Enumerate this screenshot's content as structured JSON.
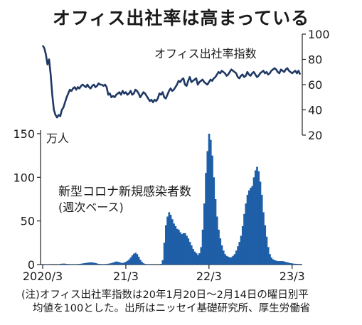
{
  "title": "オフィス出社率は高まっている",
  "note": {
    "line1": "(注)オフィス出社率指数は20年1月20日〜2月14日の曜日別平",
    "line2": "均値を100とした。出所はニッセイ基礎研究所、厚生労働省"
  },
  "colors": {
    "line": "#1f3864",
    "bars": "#1f5fa8",
    "axis": "#222222"
  },
  "chart_data": [
    {
      "type": "line",
      "series_label": "オフィス出社率指数",
      "y_axis_side": "right",
      "ylim": [
        20,
        100
      ],
      "yticks": [
        20,
        40,
        60,
        80,
        100
      ],
      "x_unit": "weeks since 2020/3",
      "x": [
        0,
        1,
        2,
        3,
        4,
        5,
        6,
        7,
        8,
        9,
        10,
        11,
        12,
        13,
        14,
        15,
        16,
        17,
        18,
        19,
        20,
        21,
        22,
        23,
        24,
        25,
        26,
        27,
        28,
        29,
        30,
        31,
        32,
        33,
        34,
        35,
        36,
        37,
        38,
        39,
        40,
        41,
        42,
        43,
        44,
        45,
        46,
        47,
        48,
        49,
        50,
        51,
        52,
        53,
        54,
        55,
        56,
        57,
        58,
        59,
        60,
        61,
        62,
        63,
        64,
        65,
        66,
        67,
        68,
        69,
        70,
        71,
        72,
        73,
        74,
        75,
        76,
        77,
        78,
        79,
        80,
        81,
        82,
        83,
        84,
        85,
        86,
        87,
        88,
        89,
        90,
        91,
        92,
        93,
        94,
        95,
        96,
        97,
        98,
        99,
        100,
        101,
        102,
        103,
        104,
        105,
        106,
        107,
        108,
        109,
        110,
        111,
        112,
        113,
        114,
        115,
        116,
        117,
        118,
        119,
        120,
        121,
        122,
        123,
        124,
        125,
        126,
        127,
        128,
        129,
        130,
        131,
        132,
        133,
        134,
        135,
        136,
        137,
        138,
        139,
        140,
        141,
        142,
        143,
        144,
        145,
        146,
        147,
        148,
        149,
        150,
        151,
        152,
        153,
        154,
        155,
        156,
        157,
        158,
        159,
        160,
        161
      ],
      "values": [
        91,
        89,
        84,
        76,
        80,
        68,
        52,
        40,
        36,
        34,
        36,
        35,
        40,
        42,
        46,
        50,
        53,
        56,
        55,
        57,
        58,
        56,
        58,
        57,
        59,
        60,
        59,
        58,
        60,
        58,
        57,
        59,
        60,
        58,
        59,
        61,
        60,
        60,
        59,
        60,
        58,
        52,
        53,
        50,
        51,
        50,
        52,
        53,
        54,
        52,
        55,
        53,
        54,
        52,
        53,
        55,
        52,
        53,
        56,
        55,
        53,
        50,
        52,
        54,
        53,
        51,
        49,
        47,
        48,
        46,
        48,
        47,
        49,
        53,
        52,
        54,
        50,
        49,
        52,
        55,
        57,
        55,
        56,
        58,
        60,
        63,
        62,
        64,
        65,
        60,
        59,
        63,
        66,
        62,
        63,
        64,
        65,
        60,
        62,
        63,
        64,
        62,
        61,
        60,
        62,
        64,
        63,
        65,
        66,
        68,
        70,
        69,
        71,
        70,
        69,
        67,
        68,
        70,
        72,
        71,
        70,
        69,
        66,
        65,
        67,
        68,
        66,
        67,
        70,
        68,
        67,
        69,
        70,
        68,
        66,
        67,
        69,
        70,
        71,
        69,
        70,
        68,
        69,
        71,
        72,
        73,
        72,
        70,
        69,
        72,
        71,
        70,
        72,
        73,
        71,
        70,
        69,
        70,
        71,
        69,
        71,
        68
      ]
    },
    {
      "type": "bar",
      "series_label": "新型コロナ新規感染者数",
      "series_sublabel": "(週次ベース)",
      "unit": "万人",
      "y_axis_side": "left",
      "ylim": [
        0,
        150
      ],
      "yticks": [
        0,
        50,
        100,
        150
      ],
      "x_ticks": [
        "2020/3",
        "21/3",
        "22/3",
        "23/3"
      ],
      "x_unit": "weeks since 2020/3",
      "x": [
        0,
        1,
        2,
        3,
        4,
        5,
        6,
        7,
        8,
        9,
        10,
        11,
        12,
        13,
        14,
        15,
        16,
        17,
        18,
        19,
        20,
        21,
        22,
        23,
        24,
        25,
        26,
        27,
        28,
        29,
        30,
        31,
        32,
        33,
        34,
        35,
        36,
        37,
        38,
        39,
        40,
        41,
        42,
        43,
        44,
        45,
        46,
        47,
        48,
        49,
        50,
        51,
        52,
        53,
        54,
        55,
        56,
        57,
        58,
        59,
        60,
        61,
        62,
        63,
        64,
        65,
        66,
        67,
        68,
        69,
        70,
        71,
        72,
        73,
        74,
        75,
        76,
        77,
        78,
        79,
        80,
        81,
        82,
        83,
        84,
        85,
        86,
        87,
        88,
        89,
        90,
        91,
        92,
        93,
        94,
        95,
        96,
        97,
        98,
        99,
        100,
        101,
        102,
        103,
        104,
        105,
        106,
        107,
        108,
        109,
        110,
        111,
        112,
        113,
        114,
        115,
        116,
        117,
        118,
        119,
        120,
        121,
        122,
        123,
        124,
        125,
        126,
        127,
        128,
        129,
        130,
        131,
        132,
        133,
        134,
        135,
        136,
        137,
        138,
        139,
        140,
        141,
        142,
        143,
        144,
        145,
        146,
        147,
        148,
        149,
        150,
        151,
        152,
        153,
        154,
        155,
        156,
        157,
        158,
        159,
        160,
        161
      ],
      "values": [
        0.2,
        0.3,
        0.4,
        0.4,
        0.3,
        0.2,
        0.1,
        0.1,
        0.1,
        0.2,
        0.4,
        0.8,
        1.0,
        1.1,
        1.0,
        0.8,
        0.6,
        0.4,
        0.3,
        0.3,
        0.3,
        0.4,
        0.6,
        0.8,
        1.0,
        1.3,
        1.6,
        1.9,
        2.2,
        2.4,
        2.5,
        2.4,
        2.1,
        1.7,
        1.2,
        0.8,
        0.6,
        0.5,
        0.5,
        0.6,
        0.8,
        1.0,
        1.3,
        1.7,
        2.3,
        3.0,
        3.5,
        3.2,
        2.6,
        2.0,
        1.8,
        2.3,
        3.2,
        4.4,
        5.8,
        8.0,
        10.5,
        12.5,
        13.5,
        12.0,
        9.0,
        5.5,
        3.0,
        1.5,
        0.8,
        0.4,
        0.3,
        0.2,
        0.2,
        0.2,
        0.2,
        0.2,
        0.2,
        0.3,
        0.8,
        5.0,
        25.0,
        45.0,
        55.0,
        60.0,
        57.0,
        52.0,
        47.0,
        44.0,
        41.0,
        40.0,
        37.0,
        35.0,
        36.0,
        36.0,
        33.0,
        30.0,
        26.0,
        22.0,
        18.0,
        15.0,
        13.0,
        11.0,
        13.0,
        20.0,
        40.0,
        70.0,
        105.0,
        130.0,
        150.0,
        143.0,
        125.0,
        100.0,
        75.0,
        55.0,
        40.0,
        30.0,
        22.0,
        16.0,
        12.0,
        10.0,
        9.0,
        8.0,
        8.5,
        10.0,
        12.0,
        16.0,
        21.0,
        26.0,
        33.0,
        44.0,
        58.0,
        70.0,
        80.0,
        85.0,
        88.0,
        90.0,
        100.0,
        108.0,
        112.0,
        107.0,
        95.0,
        80.0,
        60.0,
        45.0,
        32.0,
        20.0,
        12.0,
        8.0,
        6.0,
        5.0,
        4.5,
        4.0,
        4.0,
        4.0,
        4.0,
        3.5,
        3.0,
        2.5,
        2.0,
        1.6,
        1.3,
        1.0,
        0.9,
        0.8,
        0.7,
        0.6
      ]
    }
  ]
}
